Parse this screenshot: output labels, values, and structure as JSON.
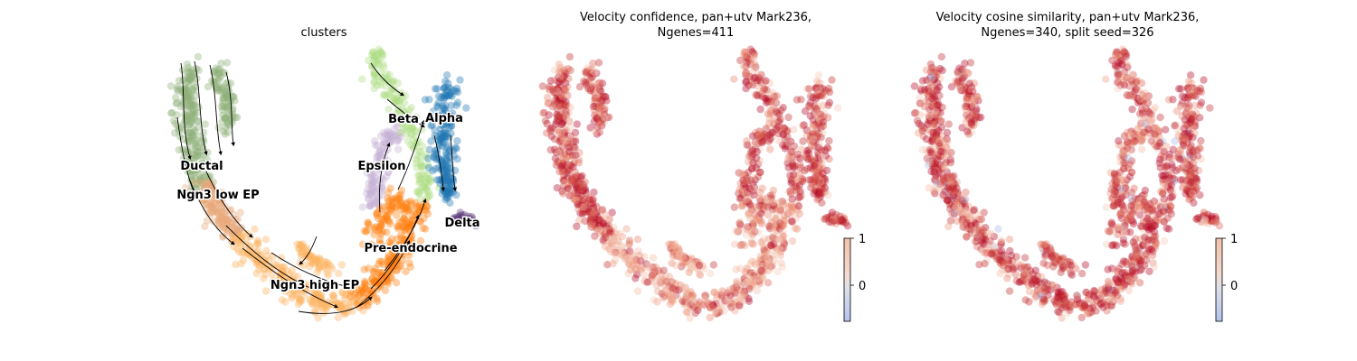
{
  "chart_data": [
    {
      "type": "scatter",
      "title": "clusters",
      "clusters": [
        {
          "name": "Ductal",
          "color": "#8fb07a"
        },
        {
          "name": "Ngn3 low EP",
          "color": "#e8a97a"
        },
        {
          "name": "Ngn3 high EP",
          "color": "#fdb462"
        },
        {
          "name": "Pre-endocrine",
          "color": "#ff7f0e"
        },
        {
          "name": "Beta",
          "color": "#aedc84"
        },
        {
          "name": "Alpha",
          "color": "#1f77b4"
        },
        {
          "name": "Delta",
          "color": "#5c3a78"
        },
        {
          "name": "Epsilon",
          "color": "#c5b0d5"
        }
      ],
      "overlay": "velocity streamlines",
      "axes": "off"
    },
    {
      "type": "scatter",
      "title_line1": "Velocity confidence, pan+utv Mark236,",
      "title_line2": "Ngenes=411",
      "colormap": "coolwarm",
      "colorbar": {
        "ticks": [
          "1",
          "0"
        ],
        "range": [
          -0.7,
          1
        ]
      },
      "axes": "off"
    },
    {
      "type": "scatter",
      "title_line1": "Velocity cosine similarity, pan+utv Mark236,",
      "title_line2": "Ngenes=340, split seed=326",
      "colormap": "coolwarm",
      "colorbar": {
        "ticks": [
          "1",
          "0"
        ],
        "range": [
          -0.7,
          1
        ]
      },
      "axes": "off"
    }
  ]
}
